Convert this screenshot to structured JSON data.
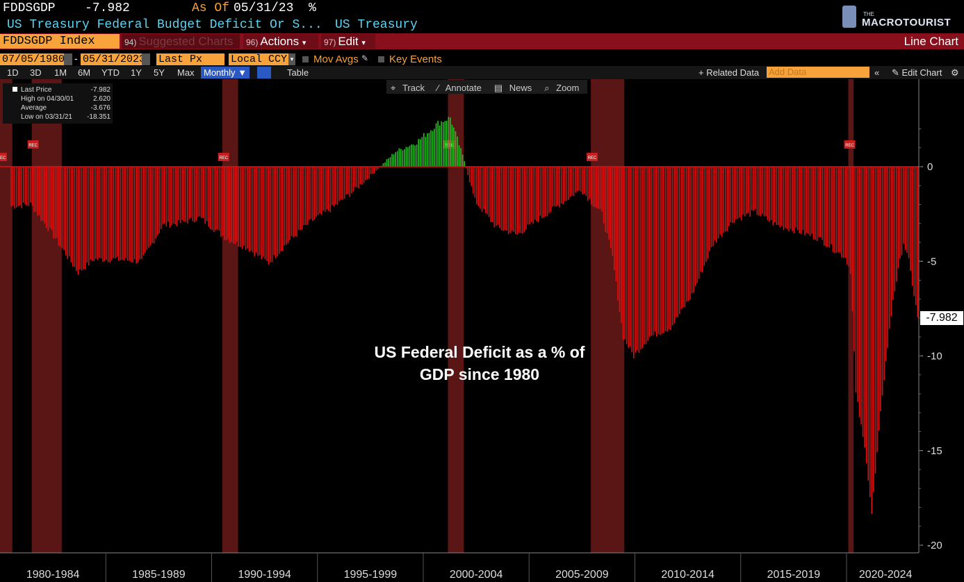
{
  "header": {
    "ticker": "FDDSGDP",
    "last_value": "-7.982",
    "as_of_label": "As Of",
    "as_of_date": "05/31/23",
    "unit": "%",
    "description": "US Treasury Federal Budget Deficit Or S...",
    "source": "US Treasury"
  },
  "logo": {
    "line1": "THE",
    "line2": "MACROTOURIST"
  },
  "toolbar": {
    "index": "FDDSGDP Index",
    "suggested_num": "94)",
    "suggested": "Suggested Charts",
    "actions_num": "96)",
    "actions": "Actions",
    "edit_num": "97)",
    "edit": "Edit",
    "chart_type": "Line Chart"
  },
  "controls": {
    "start_date": "07/05/1980",
    "end_date": "05/31/2023",
    "price_field": "Last Px",
    "currency": "Local CCY",
    "mov_avgs": "Mov Avgs",
    "key_events": "Key Events"
  },
  "periods": [
    "1D",
    "3D",
    "1M",
    "6M",
    "YTD",
    "1Y",
    "5Y",
    "Max"
  ],
  "frequency": "Monthly",
  "table_label": "Table",
  "related_data": "+ Related Data",
  "add_data": "Add Data",
  "edit_chart": "Edit Chart",
  "tools": [
    "Track",
    "Annotate",
    "News",
    "Zoom"
  ],
  "legend": {
    "last_price_label": "Last Price",
    "last_price": "-7.982",
    "high_label": "High on 04/30/01",
    "high": "2.620",
    "average_label": "Average",
    "average": "-3.676",
    "low_label": "Low on 03/31/21",
    "low": "-18.351"
  },
  "annotation": {
    "line1": "US Federal Deficit as a % of",
    "line2": "GDP since 1980"
  },
  "recession_tag": "REC",
  "colors": {
    "deficit": "#e01010",
    "surplus": "#22c422",
    "recession": "#5a1515",
    "accent": "#f7a23a",
    "bar_red": "#8a0f1c"
  },
  "chart_data": {
    "type": "bar",
    "frequency": "monthly",
    "y_ticks": [
      0,
      -5,
      -10,
      -15,
      -20
    ],
    "ylim": [
      -20.5,
      3.5
    ],
    "last_value_label": "-7.982",
    "x_tick_labels": [
      "1980-1984",
      "1985-1989",
      "1990-1994",
      "1995-1999",
      "2000-2004",
      "2005-2009",
      "2010-2014",
      "2015-2019",
      "2020-2024"
    ],
    "recessions": [
      [
        "1980-01",
        "1980-07"
      ],
      [
        "1981-07",
        "1982-11"
      ],
      [
        "1990-07",
        "1991-03"
      ],
      [
        "2001-03",
        "2001-11"
      ],
      [
        "2007-12",
        "2009-06"
      ],
      [
        "2020-02",
        "2020-04"
      ]
    ],
    "series": [
      {
        "keypoints": [
          [
            "1980-07",
            -2.1
          ],
          [
            "1981-06",
            -2.0
          ],
          [
            "1982-06",
            -3.5
          ],
          [
            "1983-09",
            -5.6
          ],
          [
            "1984-06",
            -4.9
          ],
          [
            "1985-06",
            -4.9
          ],
          [
            "1986-09",
            -5.0
          ],
          [
            "1987-09",
            -3.1
          ],
          [
            "1988-06",
            -3.0
          ],
          [
            "1989-06",
            -2.7
          ],
          [
            "1990-09",
            -3.8
          ],
          [
            "1991-09",
            -4.3
          ],
          [
            "1992-09",
            -5.1
          ],
          [
            "1993-09",
            -3.9
          ],
          [
            "1994-09",
            -2.9
          ],
          [
            "1995-09",
            -2.2
          ],
          [
            "1996-09",
            -1.3
          ],
          [
            "1997-09",
            -0.3
          ],
          [
            "1998-09",
            0.8
          ],
          [
            "1999-09",
            1.3
          ],
          [
            "2000-09",
            2.3
          ],
          [
            "2001-04",
            2.6
          ],
          [
            "2001-12",
            0.3
          ],
          [
            "2002-06",
            -1.8
          ],
          [
            "2003-06",
            -3.2
          ],
          [
            "2004-06",
            -3.6
          ],
          [
            "2005-06",
            -2.8
          ],
          [
            "2006-06",
            -2.0
          ],
          [
            "2007-06",
            -1.2
          ],
          [
            "2008-06",
            -2.5
          ],
          [
            "2008-12",
            -4.8
          ],
          [
            "2009-06",
            -9.0
          ],
          [
            "2009-12",
            -10.0
          ],
          [
            "2010-09",
            -9.0
          ],
          [
            "2011-09",
            -8.5
          ],
          [
            "2012-09",
            -6.8
          ],
          [
            "2013-09",
            -4.1
          ],
          [
            "2014-09",
            -2.8
          ],
          [
            "2015-09",
            -2.4
          ],
          [
            "2016-09",
            -3.1
          ],
          [
            "2017-09",
            -3.4
          ],
          [
            "2018-09",
            -3.8
          ],
          [
            "2019-06",
            -4.4
          ],
          [
            "2019-12",
            -4.8
          ],
          [
            "2020-03",
            -5.5
          ],
          [
            "2020-06",
            -12.0
          ],
          [
            "2020-12",
            -15.5
          ],
          [
            "2021-03",
            -18.351
          ],
          [
            "2021-09",
            -12.0
          ],
          [
            "2022-03",
            -7.0
          ],
          [
            "2022-09",
            -4.0
          ],
          [
            "2022-12",
            -5.0
          ],
          [
            "2023-05",
            -7.982
          ]
        ]
      }
    ]
  }
}
